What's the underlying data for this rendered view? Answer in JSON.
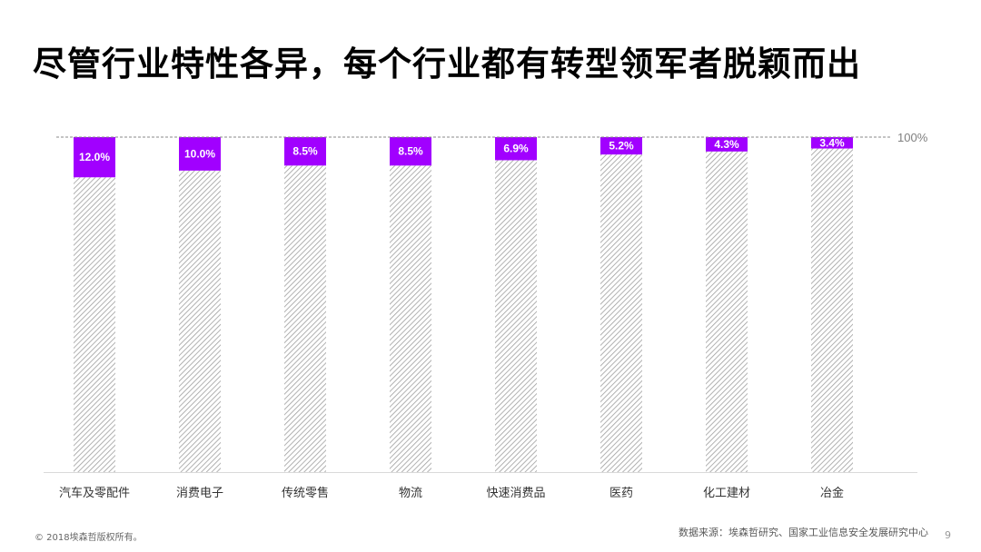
{
  "slide": {
    "title": "尽管行业特性各异，每个行业都有转型领军者脱颖而出",
    "copyright": "© 2018埃森哲版权所有。",
    "source": "数据来源：埃森哲研究、国家工业信息安全发展研究中心",
    "page_number": "9"
  },
  "chart_data": {
    "type": "bar",
    "stacked": true,
    "categories": [
      "汽车及零配件",
      "消费电子",
      "传统零售",
      "物流",
      "快速消费品",
      "医药",
      "化工建材",
      "冶金"
    ],
    "series": [
      {
        "values": [
          12.0,
          10.0,
          8.5,
          8.5,
          6.9,
          5.2,
          4.3,
          3.4
        ],
        "labels": [
          "12.0%",
          "10.0%",
          "8.5%",
          "8.5%",
          "6.9%",
          "5.2%",
          "4.3%",
          "3.4%"
        ],
        "color": "#a100ff"
      },
      {
        "values": [
          88.0,
          90.0,
          91.5,
          91.5,
          93.1,
          94.8,
          95.7,
          96.6
        ],
        "color": "#d9d9d9",
        "pattern": "diagonal-hatch"
      }
    ],
    "ylim": [
      0,
      100
    ],
    "reference_line": {
      "value": 100,
      "label": "100%"
    },
    "grid": false,
    "legend": "none"
  }
}
